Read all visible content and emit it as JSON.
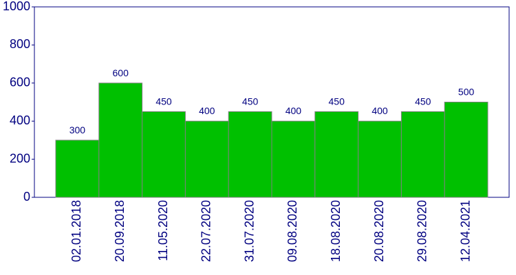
{
  "chart_data": {
    "type": "bar",
    "categories": [
      "02.01.2018",
      "20.09.2018",
      "11.05.2020",
      "22.07.2020",
      "31.07.2020",
      "09.08.2020",
      "18.08.2020",
      "20.08.2020",
      "29.08.2020",
      "12.04.2021"
    ],
    "values": [
      300,
      600,
      450,
      400,
      450,
      400,
      450,
      400,
      450,
      500
    ],
    "color": "#00c000",
    "ylim": [
      0,
      1000
    ],
    "yticks": [
      0,
      200,
      400,
      600,
      800,
      1000
    ],
    "grid": false
  }
}
